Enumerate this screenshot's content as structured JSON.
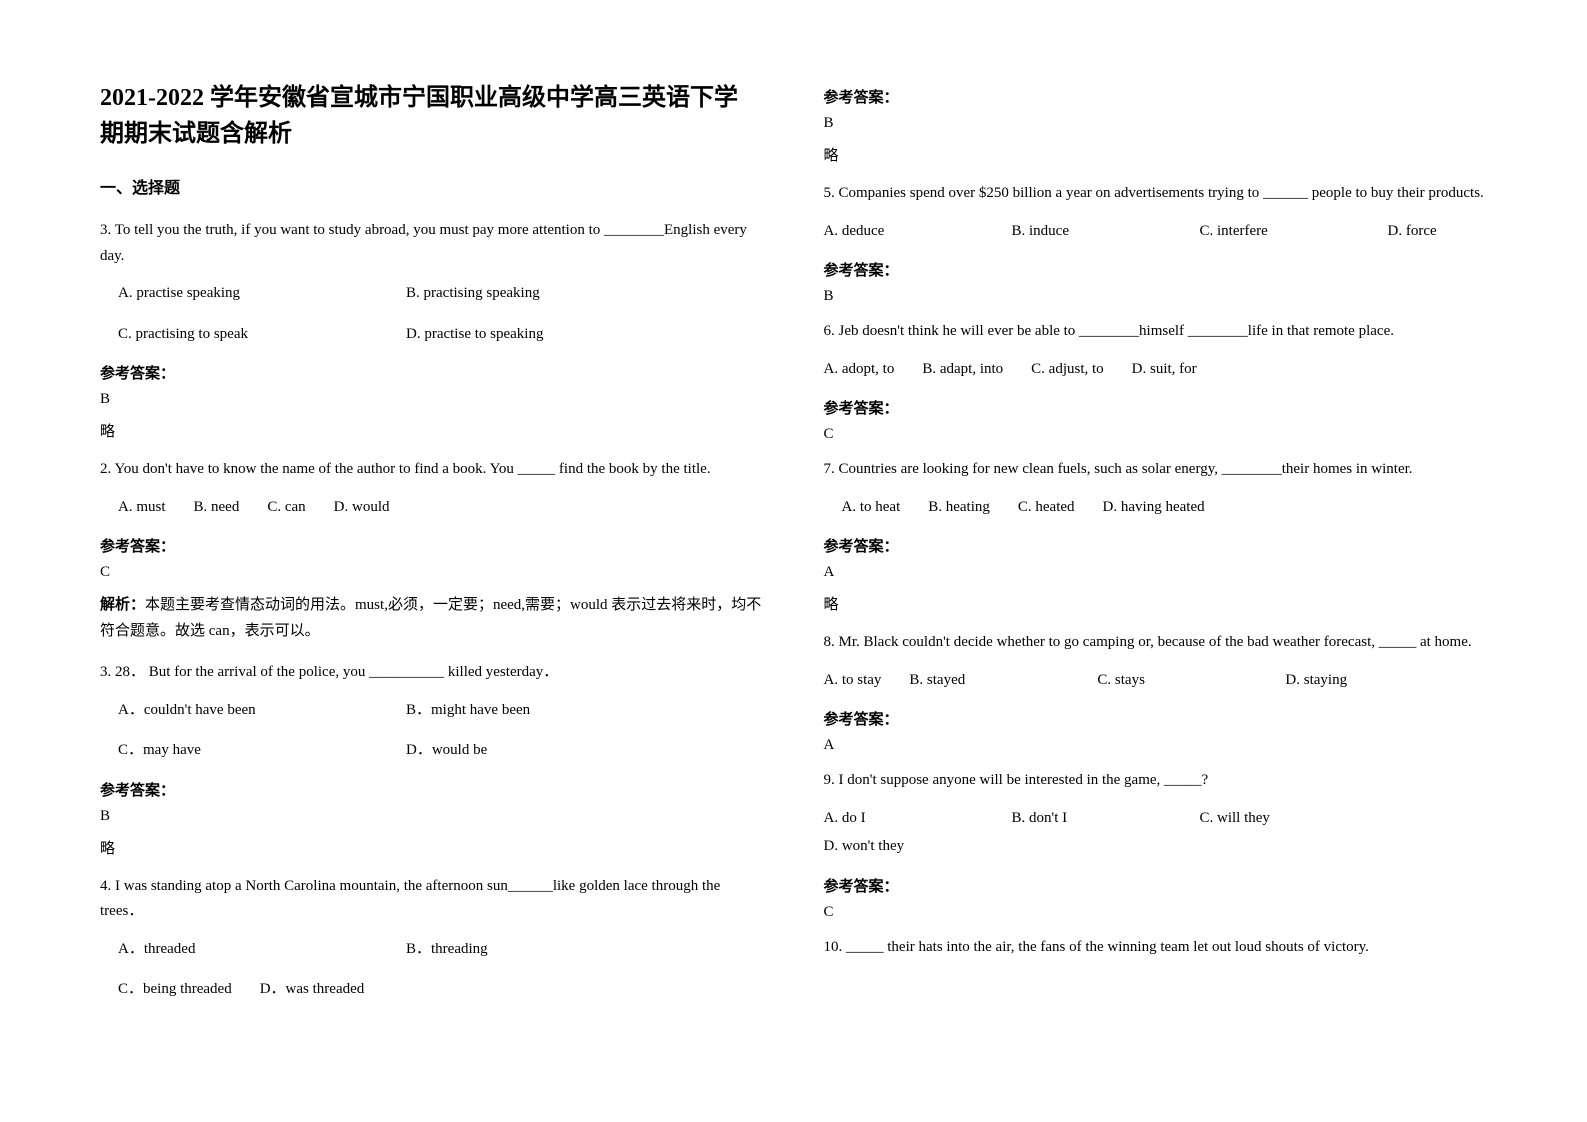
{
  "header": {
    "title_line1": "2021-2022 学年安徽省宣城市宁国职业高级中学高三英语下学",
    "title_line2": "期期末试题含解析"
  },
  "section": {
    "heading": "一、选择题"
  },
  "left": {
    "q1": {
      "num": "3.",
      "text": "To tell you the truth, if you want to study abroad, you must pay more attention to ________English every day.",
      "options": {
        "A": "A. practise speaking",
        "B": "B. practising speaking",
        "C": "C. practising to speak",
        "D": "D. practise to speaking"
      },
      "answer_label": "参考答案：",
      "answer": "B",
      "note": "略"
    },
    "q2": {
      "num": "2.",
      "text": "You don't have to know the name of the author to find a book. You _____ find the book by the title.",
      "options": {
        "A": "A. must",
        "B": "B. need",
        "C": "C. can",
        "D": "D. would"
      },
      "answer_label": "参考答案：",
      "answer": "C",
      "explain_label": "解析：",
      "explain": "本题主要考查情态动词的用法。must,必须，一定要；need,需要；would 表示过去将来时，均不符合题意。故选 can，表示可以。"
    },
    "q3": {
      "num": "3. 28．",
      "text": "But for the arrival of the police, you __________ killed yesterday．",
      "options": {
        "A": "A．couldn't have been",
        "B": "B．might have been",
        "C": "C．may have",
        "D": "D．would be"
      },
      "answer_label": "参考答案：",
      "answer": "B",
      "note": "略"
    },
    "q4": {
      "num": "4.",
      "text": "I was standing atop a North Carolina mountain, the afternoon sun______like golden lace through the trees．",
      "options": {
        "A": "A．threaded",
        "B": "B．threading",
        "C": "C．being threaded",
        "D": "D．was threaded"
      }
    }
  },
  "right": {
    "q4ans": {
      "answer_label": "参考答案：",
      "answer": "B",
      "note": "略"
    },
    "q5": {
      "num": "5.",
      "text": "Companies spend over $250 billion a year on advertisements trying to ______ people to buy their products.",
      "options": {
        "A": "A. deduce",
        "B": "B. induce",
        "C": "C. interfere",
        "D": "D. force"
      },
      "answer_label": "参考答案：",
      "answer": "B"
    },
    "q6": {
      "num": "6.",
      "text": "Jeb doesn't think he will ever be able to ________himself ________life in that remote place.",
      "options": {
        "A": "A. adopt, to",
        "B": "B. adapt, into",
        "C": "C. adjust, to",
        "D": "D. suit, for"
      },
      "answer_label": "参考答案：",
      "answer": "C"
    },
    "q7": {
      "num": "7.",
      "text": "Countries are looking for new clean fuels, such as solar energy, ________their homes in winter.",
      "options": {
        "A": "A. to heat",
        "B": "B. heating",
        "C": "C. heated",
        "D": "D. having heated"
      },
      "answer_label": "参考答案：",
      "answer": "A",
      "note": "略"
    },
    "q8": {
      "num": "8.",
      "text": "Mr. Black couldn't decide whether to go camping or, because of the bad weather forecast, _____ at home.",
      "options": {
        "A": "A. to stay",
        "B": "B. stayed",
        "C": "C. stays",
        "D": "D. staying"
      },
      "answer_label": "参考答案：",
      "answer": "A"
    },
    "q9": {
      "num": "9.",
      "text": "I don't suppose anyone will be interested in the game, _____?",
      "options": {
        "A": "A. do I",
        "B": "B. don't I",
        "C": "C. will they",
        "D": "D. won't they"
      },
      "answer_label": "参考答案：",
      "answer": "C"
    },
    "q10": {
      "num": "10.",
      "text": "_____ their hats into the air, the fans of the winning team let out loud shouts of victory."
    }
  }
}
